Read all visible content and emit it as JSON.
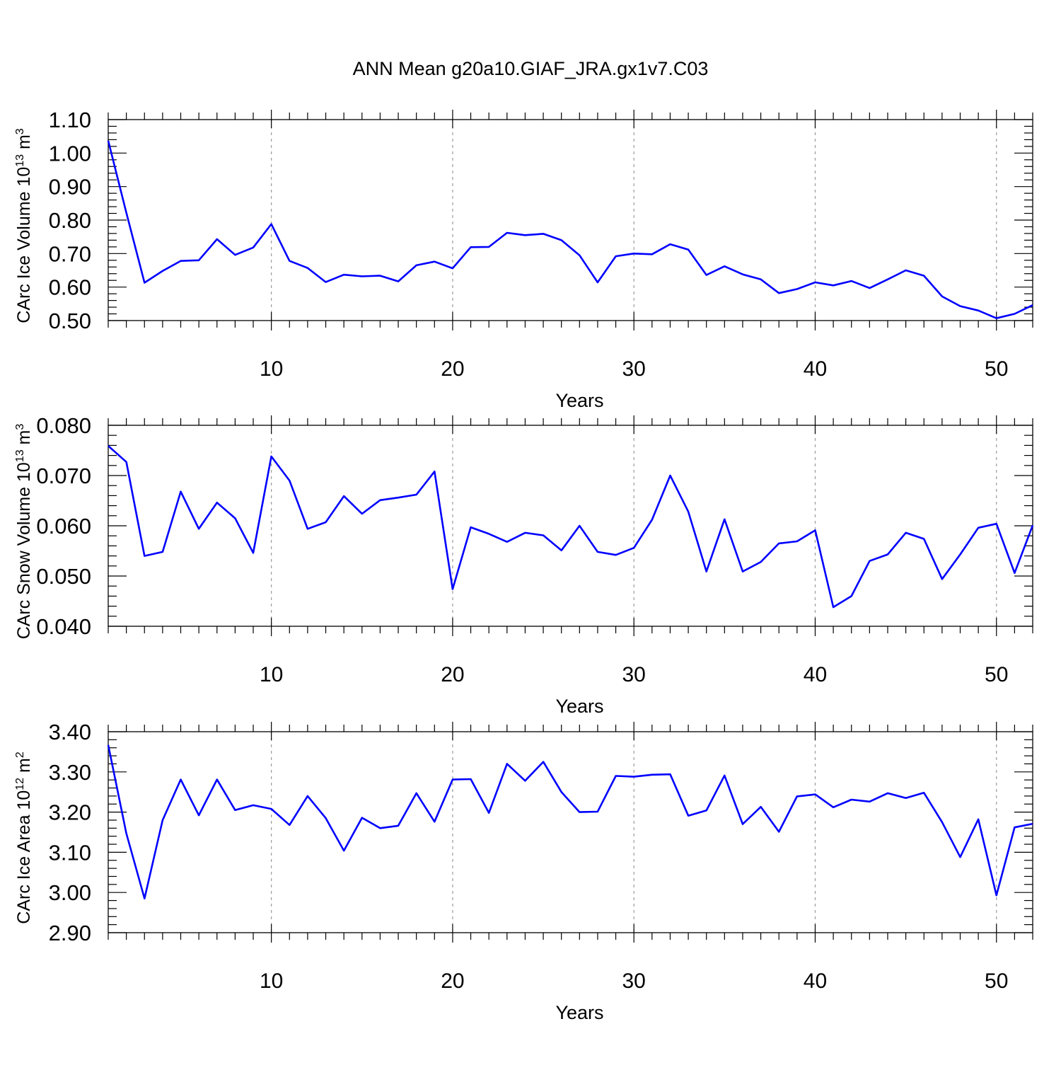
{
  "title": "ANN Mean g20a10.GIAF_JRA.gx1v7.C03",
  "colors": {
    "line": "#0000ff",
    "axis": "#000000",
    "grid": "#999999"
  },
  "chart_data": [
    {
      "type": "line",
      "title": "ANN Mean g20a10.GIAF_JRA.gx1v7.C03",
      "xlabel": "Years",
      "ylabel": {
        "text": "CArc Ice Volume 10",
        "sup1": "13",
        "mid": " m",
        "sup2": "3"
      },
      "xlim": [
        1,
        52
      ],
      "ylim": [
        0.5,
        1.1
      ],
      "xticks": [
        10,
        20,
        30,
        40,
        50
      ],
      "xtick_labels": [
        "10",
        "20",
        "30",
        "40",
        "50"
      ],
      "yticks": [
        0.5,
        0.6,
        0.7,
        0.8,
        0.9,
        1.0,
        1.1
      ],
      "ytick_labels": [
        "0.50",
        "0.60",
        "0.70",
        "0.80",
        "0.90",
        "1.00",
        "1.10"
      ],
      "yminor_step": 0.02,
      "grid": "vertical-dashed",
      "x": [
        1,
        2,
        3,
        4,
        5,
        6,
        7,
        8,
        9,
        10,
        11,
        12,
        13,
        14,
        15,
        16,
        17,
        18,
        19,
        20,
        21,
        22,
        23,
        24,
        25,
        26,
        27,
        28,
        29,
        30,
        31,
        32,
        33,
        34,
        35,
        36,
        37,
        38,
        39,
        40,
        41,
        42,
        43,
        44,
        45,
        46,
        47,
        48,
        49,
        50,
        51,
        52
      ],
      "values": [
        1.037,
        0.822,
        0.613,
        0.648,
        0.678,
        0.68,
        0.743,
        0.696,
        0.718,
        0.788,
        0.678,
        0.657,
        0.615,
        0.637,
        0.632,
        0.634,
        0.617,
        0.665,
        0.676,
        0.656,
        0.719,
        0.72,
        0.762,
        0.755,
        0.759,
        0.74,
        0.695,
        0.614,
        0.692,
        0.7,
        0.698,
        0.728,
        0.712,
        0.636,
        0.662,
        0.638,
        0.623,
        0.582,
        0.594,
        0.614,
        0.605,
        0.618,
        0.597,
        0.623,
        0.65,
        0.634,
        0.572,
        0.543,
        0.53,
        0.507,
        0.52,
        0.546
      ]
    },
    {
      "type": "line",
      "xlabel": "Years",
      "ylabel": {
        "text": "CArc Snow Volume 10",
        "sup1": "13",
        "mid": " m",
        "sup2": "3"
      },
      "xlim": [
        1,
        52
      ],
      "ylim": [
        0.04,
        0.08
      ],
      "xticks": [
        10,
        20,
        30,
        40,
        50
      ],
      "xtick_labels": [
        "10",
        "20",
        "30",
        "40",
        "50"
      ],
      "yticks": [
        0.04,
        0.05,
        0.06,
        0.07,
        0.08
      ],
      "ytick_labels": [
        "0.040",
        "0.050",
        "0.060",
        "0.070",
        "0.080"
      ],
      "yminor_step": 0.002,
      "grid": "vertical-dashed",
      "x": [
        1,
        2,
        3,
        4,
        5,
        6,
        7,
        8,
        9,
        10,
        11,
        12,
        13,
        14,
        15,
        16,
        17,
        18,
        19,
        20,
        21,
        22,
        23,
        24,
        25,
        26,
        27,
        28,
        29,
        30,
        31,
        32,
        33,
        34,
        35,
        36,
        37,
        38,
        39,
        40,
        41,
        42,
        43,
        44,
        45,
        46,
        47,
        48,
        49,
        50,
        51,
        52
      ],
      "values": [
        0.0759,
        0.0727,
        0.054,
        0.0548,
        0.0668,
        0.0594,
        0.0646,
        0.0615,
        0.0546,
        0.0738,
        0.069,
        0.0594,
        0.0607,
        0.0659,
        0.0624,
        0.0651,
        0.0656,
        0.0662,
        0.0708,
        0.0474,
        0.0597,
        0.0584,
        0.0568,
        0.0586,
        0.0581,
        0.0551,
        0.06,
        0.0548,
        0.0542,
        0.0556,
        0.0612,
        0.07,
        0.0628,
        0.0509,
        0.0613,
        0.0509,
        0.0528,
        0.0565,
        0.0569,
        0.0591,
        0.0438,
        0.046,
        0.053,
        0.0543,
        0.0586,
        0.0574,
        0.0494,
        0.0543,
        0.0596,
        0.0604,
        0.0506,
        0.0601
      ]
    },
    {
      "type": "line",
      "xlabel": "Years",
      "ylabel": {
        "text": "CArc Ice Area 10",
        "sup1": "12",
        "mid": " m",
        "sup2": "2"
      },
      "xlim": [
        1,
        52
      ],
      "ylim": [
        2.9,
        3.4
      ],
      "xticks": [
        10,
        20,
        30,
        40,
        50
      ],
      "xtick_labels": [
        "10",
        "20",
        "30",
        "40",
        "50"
      ],
      "yticks": [
        2.9,
        3.0,
        3.1,
        3.2,
        3.3,
        3.4
      ],
      "ytick_labels": [
        "2.90",
        "3.00",
        "3.10",
        "3.20",
        "3.30",
        "3.40"
      ],
      "yminor_step": 0.02,
      "grid": "vertical-dashed",
      "x": [
        1,
        2,
        3,
        4,
        5,
        6,
        7,
        8,
        9,
        10,
        11,
        12,
        13,
        14,
        15,
        16,
        17,
        18,
        19,
        20,
        21,
        22,
        23,
        24,
        25,
        26,
        27,
        28,
        29,
        30,
        31,
        32,
        33,
        34,
        35,
        36,
        37,
        38,
        39,
        40,
        41,
        42,
        43,
        44,
        45,
        46,
        47,
        48,
        49,
        50,
        51,
        52
      ],
      "values": [
        3.367,
        3.147,
        2.985,
        3.18,
        3.281,
        3.192,
        3.281,
        3.205,
        3.217,
        3.208,
        3.168,
        3.24,
        3.185,
        3.104,
        3.186,
        3.16,
        3.166,
        3.247,
        3.176,
        3.281,
        3.282,
        3.198,
        3.32,
        3.278,
        3.325,
        3.25,
        3.2,
        3.201,
        3.29,
        3.288,
        3.293,
        3.294,
        3.191,
        3.204,
        3.291,
        3.17,
        3.213,
        3.151,
        3.239,
        3.244,
        3.212,
        3.231,
        3.226,
        3.247,
        3.235,
        3.248,
        3.175,
        3.088,
        3.182,
        2.993,
        3.162,
        3.171
      ]
    }
  ]
}
